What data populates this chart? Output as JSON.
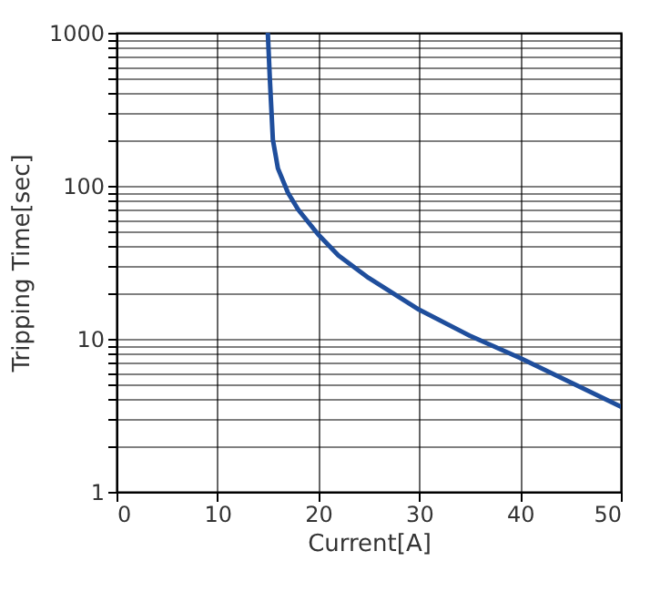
{
  "chart_data": {
    "type": "line",
    "xlabel": "Current[A]",
    "ylabel": "Tripping Time[sec]",
    "x": [
      15,
      15.2,
      15.5,
      16,
      17,
      18,
      20,
      22,
      25,
      30,
      35,
      40,
      45,
      50
    ],
    "series": [
      {
        "color": "#1f4e9c",
        "values": [
          1000,
          500,
          200,
          130,
          90,
          70,
          48,
          35,
          25,
          15.5,
          10.5,
          7.5,
          5.2,
          3.6
        ]
      }
    ],
    "xlim": [
      0,
      50
    ],
    "xticks": [
      0,
      10,
      20,
      30,
      40,
      50
    ],
    "ylim": [
      1,
      1000
    ],
    "log": "y",
    "yticks": [
      1,
      {
        "value": 2,
        "label": null
      },
      {
        "value": 3,
        "label": null
      },
      {
        "value": 4,
        "label": null
      },
      {
        "value": 5,
        "label": null
      },
      {
        "value": 6,
        "label": null
      },
      {
        "value": 7,
        "label": null
      },
      {
        "value": 8,
        "label": null
      },
      {
        "value": 9,
        "label": null
      },
      10,
      {
        "value": 20,
        "label": null
      },
      {
        "value": 30,
        "label": null
      },
      {
        "value": 40,
        "label": null
      },
      {
        "value": 50,
        "label": null
      },
      {
        "value": 60,
        "label": null
      },
      {
        "value": 70,
        "label": null
      },
      {
        "value": 80,
        "label": null
      },
      {
        "value": 90,
        "label": null
      },
      100,
      {
        "value": 200,
        "label": null
      },
      {
        "value": 300,
        "label": null
      },
      {
        "value": 400,
        "label": null
      },
      {
        "value": 500,
        "label": null
      },
      {
        "value": 600,
        "label": null
      },
      {
        "value": 700,
        "label": null
      },
      {
        "value": 800,
        "label": null
      },
      {
        "value": 900,
        "label": null
      },
      1000
    ],
    "grid": true,
    "line_style": "solid"
  }
}
